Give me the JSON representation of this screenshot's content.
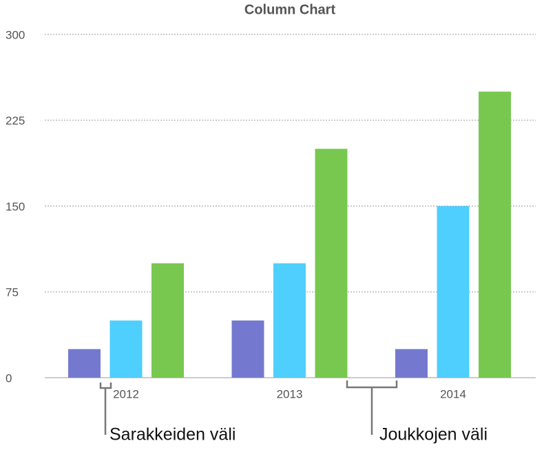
{
  "chart_data": {
    "type": "bar",
    "title": "Column Chart",
    "categories": [
      "2012",
      "2013",
      "2014"
    ],
    "series": [
      {
        "color": "#7479cf",
        "values": [
          25,
          50,
          25
        ]
      },
      {
        "color": "#4fcffd",
        "values": [
          50,
          100,
          150
        ]
      },
      {
        "color": "#78c850",
        "values": [
          100,
          200,
          250
        ]
      }
    ],
    "ylim": [
      0,
      300
    ],
    "yticks": [
      0,
      75,
      150,
      225,
      300
    ],
    "grid": true,
    "annotations": [
      "Sarakkeiden väli",
      "Joukkojen väli"
    ]
  }
}
